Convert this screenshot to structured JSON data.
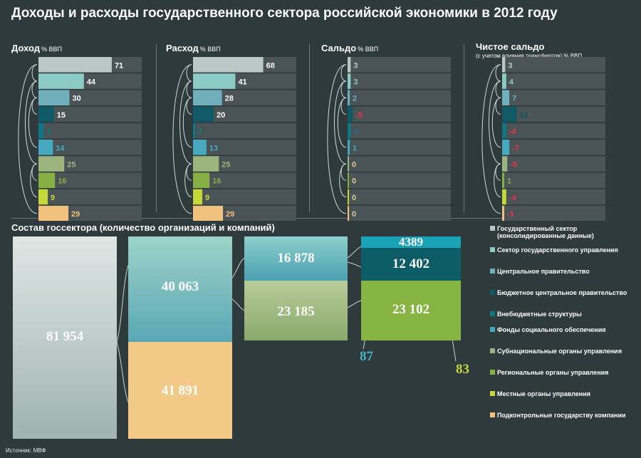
{
  "title": "Доходы и расходы государственного сектора российской экономики в 2012 году",
  "panels": [
    {
      "key": "income",
      "title": "Доход",
      "unit": "% ВВП",
      "subtitle": ""
    },
    {
      "key": "expense",
      "title": "Расход",
      "unit": "% ВВП",
      "subtitle": ""
    },
    {
      "key": "balance",
      "title": "Сальдо",
      "unit": "% ВВП",
      "subtitle": ""
    },
    {
      "key": "net",
      "title": "Чистое сальдо",
      "unit": "% ВВП",
      "subtitle": "(с учетом влияния трансфертов)"
    }
  ],
  "section2_title": "Состав госсектора (количество организаций и компаний)",
  "source": "Источник: МВФ",
  "legend": [
    {
      "label": "Государственный сектор (консолидированные данные)",
      "color": "#b9c8c4"
    },
    {
      "label": "Сектор государственного управления",
      "color": "#8ccbc4"
    },
    {
      "label": "Центральное правительство",
      "color": "#6fb0bc"
    },
    {
      "label": "Бюджетное центральное правительство",
      "color": "#0f5a66"
    },
    {
      "label": "Внебюджетные структуры",
      "color": "#0e7784"
    },
    {
      "label": "Фонды социального обеспечения",
      "color": "#45a8be"
    },
    {
      "label": "Субнациональные органы управления",
      "color": "#9cb57e"
    },
    {
      "label": "Региональные органы управления",
      "color": "#86b043"
    },
    {
      "label": "Местные органы управления",
      "color": "#c5d83a"
    },
    {
      "label": "Подконтрольные государству компании",
      "color": "#f0c27d"
    }
  ],
  "chart_data": [
    {
      "type": "bar",
      "title": "Доход",
      "unit": "% ВВП",
      "values": [
        71,
        44,
        30,
        15,
        5,
        14,
        25,
        16,
        9,
        29
      ],
      "xlim": [
        0,
        100
      ]
    },
    {
      "type": "bar",
      "title": "Расход",
      "unit": "% ВВП",
      "values": [
        68,
        41,
        28,
        20,
        2,
        13,
        25,
        16,
        9,
        29
      ],
      "xlim": [
        0,
        100
      ]
    },
    {
      "type": "bar",
      "title": "Сальдо",
      "unit": "% ВВП",
      "values": [
        3,
        3,
        2,
        -5,
        3,
        1,
        0,
        0,
        0,
        0
      ],
      "xlim": [
        0,
        100
      ]
    },
    {
      "type": "bar",
      "title": "Чистое сальдо",
      "unit": "% ВВП",
      "values": [
        3,
        4,
        7,
        14,
        -4,
        -7,
        -5,
        1,
        -4,
        -1
      ],
      "xlim": [
        0,
        100
      ]
    },
    {
      "type": "table",
      "title": "Состав госсектора (количество организаций и компаний)",
      "blocks": [
        {
          "name": "Государственный сектор (консолидированные данные)",
          "value": "81 954"
        },
        {
          "name": "Сектор государственного управления",
          "value": "40 063"
        },
        {
          "name": "Подконтрольные государству компании",
          "value": "41 891"
        },
        {
          "name": "Центральное правительство",
          "value": "16 878"
        },
        {
          "name": "Субнациональные органы управления",
          "value": "23 185"
        },
        {
          "name": "Фонды социального обеспечения",
          "value": "4389"
        },
        {
          "name": "Бюджетное центральное правительство",
          "value": "12 402"
        },
        {
          "name": "Региональные органы управления",
          "value": "23 102"
        },
        {
          "name": "Внебюджетные структуры",
          "value": "87"
        },
        {
          "name": "Местные органы управления",
          "value": "83"
        }
      ]
    }
  ],
  "colors": {
    "background": "#2f3a3c",
    "row_bg": "#4a5355",
    "negative": "#e8334f",
    "zero_label": "#d9c98c"
  }
}
